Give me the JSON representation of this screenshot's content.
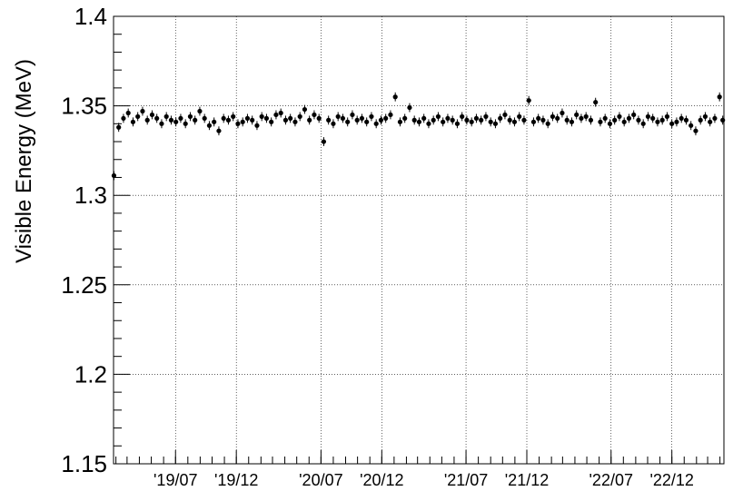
{
  "chart_data": {
    "type": "scatter",
    "title": "",
    "xlabel": "",
    "ylabel": "Visible Energy (MeV)",
    "ylim": [
      1.15,
      1.4
    ],
    "xlim": [
      "2019-01-26",
      "2023-04-11"
    ],
    "grid": true,
    "y_ticks": [
      1.15,
      1.2,
      1.25,
      1.3,
      1.35,
      1.4
    ],
    "y_tick_labels": [
      "1.15",
      "1.2",
      "1.25",
      "1.3",
      "1.35",
      "1.4"
    ],
    "x_ticks": [
      "2019-07-01",
      "2019-12-01",
      "2020-07-01",
      "2020-12-01",
      "2021-07-01",
      "2021-12-01",
      "2022-07-01",
      "2022-12-01"
    ],
    "x_tick_labels": [
      "'19/07",
      "'19/12",
      "'20/07",
      "'20/12",
      "'21/07",
      "'21/12",
      "'22/07",
      "'22/12"
    ],
    "series": [
      {
        "marker": "filled-circle",
        "color": "#000000",
        "x": [
          "2019-01-27",
          "2019-02-08",
          "2019-02-20",
          "2019-03-04",
          "2019-03-16",
          "2019-03-28",
          "2019-04-09",
          "2019-04-21",
          "2019-05-03",
          "2019-05-15",
          "2019-05-27",
          "2019-06-08",
          "2019-06-20",
          "2019-07-02",
          "2019-07-14",
          "2019-07-26",
          "2019-08-07",
          "2019-08-19",
          "2019-08-31",
          "2019-09-12",
          "2019-09-24",
          "2019-10-06",
          "2019-10-18",
          "2019-10-30",
          "2019-11-11",
          "2019-11-23",
          "2019-12-05",
          "2019-12-17",
          "2019-12-29",
          "2020-01-10",
          "2020-01-22",
          "2020-02-03",
          "2020-02-15",
          "2020-02-27",
          "2020-03-10",
          "2020-03-22",
          "2020-04-03",
          "2020-04-15",
          "2020-04-27",
          "2020-05-09",
          "2020-05-21",
          "2020-06-02",
          "2020-06-14",
          "2020-06-26",
          "2020-07-08",
          "2020-07-20",
          "2020-08-01",
          "2020-08-13",
          "2020-08-25",
          "2020-09-06",
          "2020-09-18",
          "2020-09-30",
          "2020-10-12",
          "2020-10-24",
          "2020-11-05",
          "2020-11-17",
          "2020-11-29",
          "2020-12-11",
          "2020-12-23",
          "2021-01-04",
          "2021-01-16",
          "2021-01-28",
          "2021-02-09",
          "2021-02-21",
          "2021-03-05",
          "2021-03-17",
          "2021-03-29",
          "2021-04-10",
          "2021-04-22",
          "2021-05-04",
          "2021-05-16",
          "2021-05-28",
          "2021-06-09",
          "2021-06-21",
          "2021-07-03",
          "2021-07-15",
          "2021-07-27",
          "2021-08-08",
          "2021-08-20",
          "2021-09-01",
          "2021-09-13",
          "2021-09-25",
          "2021-10-07",
          "2021-10-19",
          "2021-10-31",
          "2021-11-12",
          "2021-11-24",
          "2021-12-06",
          "2021-12-18",
          "2021-12-30",
          "2022-01-11",
          "2022-01-23",
          "2022-02-04",
          "2022-02-16",
          "2022-02-28",
          "2022-03-12",
          "2022-03-24",
          "2022-04-05",
          "2022-04-17",
          "2022-04-29",
          "2022-05-11",
          "2022-05-23",
          "2022-06-04",
          "2022-06-16",
          "2022-06-28",
          "2022-07-10",
          "2022-07-22",
          "2022-08-03",
          "2022-08-15",
          "2022-08-27",
          "2022-09-08",
          "2022-09-20",
          "2022-10-02",
          "2022-10-14",
          "2022-10-26",
          "2022-11-07",
          "2022-11-19",
          "2022-12-01",
          "2022-12-13",
          "2022-12-25",
          "2023-01-06",
          "2023-01-18",
          "2023-01-30",
          "2023-02-11",
          "2023-02-23",
          "2023-03-07",
          "2023-03-19",
          "2023-03-31",
          "2023-04-08"
        ],
        "y": [
          1.311,
          1.338,
          1.343,
          1.346,
          1.341,
          1.344,
          1.347,
          1.342,
          1.345,
          1.343,
          1.34,
          1.344,
          1.342,
          1.341,
          1.343,
          1.34,
          1.344,
          1.342,
          1.347,
          1.343,
          1.339,
          1.341,
          1.336,
          1.343,
          1.342,
          1.344,
          1.34,
          1.341,
          1.343,
          1.342,
          1.339,
          1.344,
          1.343,
          1.341,
          1.345,
          1.346,
          1.342,
          1.343,
          1.341,
          1.344,
          1.348,
          1.342,
          1.345,
          1.343,
          1.33,
          1.342,
          1.34,
          1.344,
          1.343,
          1.341,
          1.345,
          1.342,
          1.343,
          1.341,
          1.344,
          1.34,
          1.342,
          1.343,
          1.345,
          1.355,
          1.341,
          1.343,
          1.349,
          1.342,
          1.341,
          1.343,
          1.34,
          1.342,
          1.344,
          1.341,
          1.343,
          1.342,
          1.34,
          1.344,
          1.342,
          1.341,
          1.343,
          1.342,
          1.344,
          1.341,
          1.34,
          1.343,
          1.345,
          1.342,
          1.341,
          1.344,
          1.342,
          1.353,
          1.341,
          1.343,
          1.342,
          1.34,
          1.344,
          1.343,
          1.346,
          1.342,
          1.341,
          1.345,
          1.343,
          1.344,
          1.342,
          1.352,
          1.341,
          1.343,
          1.34,
          1.342,
          1.344,
          1.341,
          1.343,
          1.345,
          1.342,
          1.34,
          1.344,
          1.343,
          1.341,
          1.342,
          1.344,
          1.34,
          1.341,
          1.343,
          1.342,
          1.339,
          1.336,
          1.342,
          1.344,
          1.341,
          1.343,
          1.355,
          1.342
        ],
        "yerr": 0.0025
      }
    ]
  }
}
